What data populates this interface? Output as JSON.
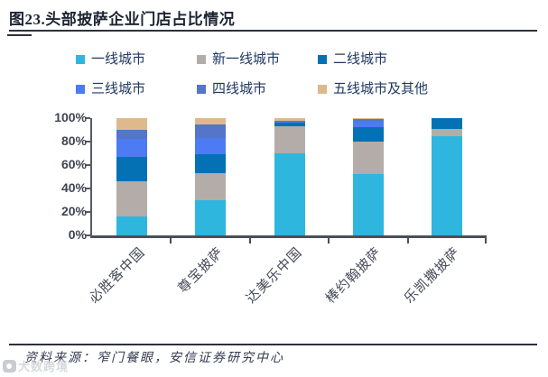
{
  "header": {
    "title": "图23.头部披萨企业门店占比情况"
  },
  "chart_data": {
    "type": "bar",
    "subtype": "stacked_percent",
    "title": "图23.头部披萨企业门店占比情况",
    "categories": [
      "必胜客中国",
      "尊宝披萨",
      "达美乐中国",
      "棒约翰披萨",
      "乐凯撒披萨"
    ],
    "series": [
      {
        "name": "一线城市",
        "color": "#2eb6df",
        "values": [
          16,
          30,
          70,
          52,
          85
        ]
      },
      {
        "name": "新一线城市",
        "color": "#b3aca9",
        "values": [
          30,
          23,
          23,
          28,
          6
        ]
      },
      {
        "name": "二线城市",
        "color": "#0471b4",
        "values": [
          21,
          16,
          3,
          12,
          9
        ]
      },
      {
        "name": "三线城市",
        "color": "#4d7bf3",
        "values": [
          15,
          14,
          1,
          5,
          0
        ]
      },
      {
        "name": "四线城市",
        "color": "#5575c8",
        "values": [
          8,
          12,
          1,
          2,
          0
        ]
      },
      {
        "name": "五线城市及其他",
        "color": "#dfb88b",
        "values": [
          10,
          5,
          2,
          1,
          0
        ]
      }
    ],
    "yticks": [
      "0%",
      "20%",
      "40%",
      "60%",
      "80%",
      "100%"
    ],
    "ylim": [
      0,
      100
    ],
    "xlabel": "",
    "ylabel": "",
    "grid": false,
    "legend_position": "top"
  },
  "footer": {
    "source": "资料来源：窄门餐眼，安信证券研究中心"
  },
  "watermark": {
    "label": "大数跨境"
  }
}
